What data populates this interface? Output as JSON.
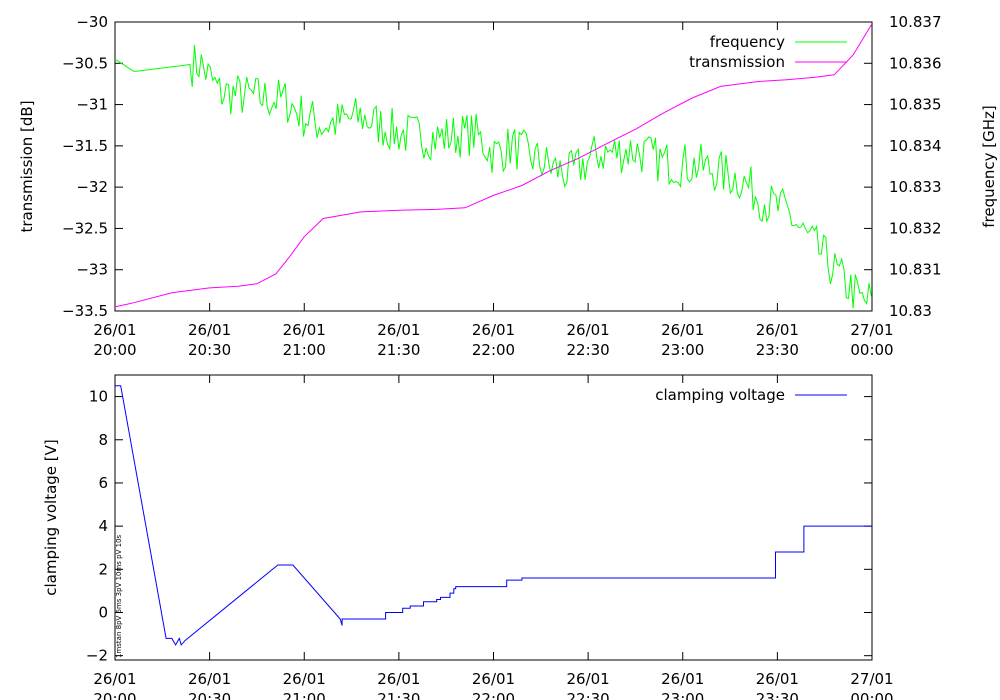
{
  "chart_data": [
    {
      "type": "line",
      "title": "",
      "xlabel": "",
      "ylabel": "transmission [dB]",
      "y2label": "frequency [GHz]",
      "ylim": [
        -33.5,
        -30
      ],
      "y2lim": [
        10.83,
        10.837
      ],
      "xlim_hours": [
        20,
        24
      ],
      "x_ticks": [
        {
          "date": "26/01",
          "time": "20:00"
        },
        {
          "date": "26/01",
          "time": "20:30"
        },
        {
          "date": "26/01",
          "time": "21:00"
        },
        {
          "date": "26/01",
          "time": "21:30"
        },
        {
          "date": "26/01",
          "time": "22:00"
        },
        {
          "date": "26/01",
          "time": "22:30"
        },
        {
          "date": "26/01",
          "time": "23:00"
        },
        {
          "date": "26/01",
          "time": "23:30"
        },
        {
          "date": "27/01",
          "time": "00:00"
        }
      ],
      "y_ticks": [
        "-30",
        "-30.5",
        "-31",
        "-31.5",
        "-32",
        "-32.5",
        "-33",
        "-33.5"
      ],
      "y2_ticks": [
        "10.837",
        "10.836",
        "10.835",
        "10.834",
        "10.833",
        "10.832",
        "10.831",
        "10.83"
      ],
      "legend_position": "top-right",
      "series": [
        {
          "name": "frequency",
          "axis": "y2",
          "color": "#00ff00",
          "x": [
            20.0,
            20.1,
            20.45,
            20.55,
            20.7,
            20.9,
            21.0,
            21.1,
            21.3,
            21.5,
            21.7,
            21.9,
            22.0,
            22.1,
            22.25,
            22.4,
            22.55,
            22.75,
            22.9,
            23.1,
            23.3,
            23.45,
            23.55,
            23.65,
            23.75,
            23.85,
            23.9,
            23.95,
            24.0
          ],
          "y": [
            10.8361,
            10.8358,
            10.836,
            10.8353,
            10.8352,
            10.8351,
            10.8347,
            10.8345,
            10.8347,
            10.8343,
            10.8342,
            10.8343,
            10.8338,
            10.834,
            10.8336,
            10.8333,
            10.8338,
            10.8339,
            10.8336,
            10.8335,
            10.8332,
            10.8326,
            10.8324,
            10.8318,
            10.8313,
            10.8307,
            10.8305,
            10.8302,
            10.8303
          ]
        },
        {
          "name": "transmission",
          "axis": "y1",
          "color": "#ff00ff",
          "x": [
            20.0,
            20.1,
            20.3,
            20.5,
            20.65,
            20.75,
            20.85,
            20.92,
            21.0,
            21.1,
            21.3,
            21.5,
            21.7,
            21.85,
            22.0,
            22.15,
            22.3,
            22.45,
            22.6,
            22.75,
            22.9,
            23.05,
            23.2,
            23.4,
            23.55,
            23.7,
            23.8,
            23.9,
            24.0
          ],
          "y": [
            -33.45,
            -33.4,
            -33.28,
            -33.22,
            -33.2,
            -33.17,
            -33.05,
            -32.85,
            -32.6,
            -32.38,
            -32.3,
            -32.28,
            -32.27,
            -32.25,
            -32.1,
            -31.98,
            -31.8,
            -31.65,
            -31.47,
            -31.3,
            -31.1,
            -30.92,
            -30.78,
            -30.72,
            -30.7,
            -30.67,
            -30.64,
            -30.4,
            -30.02
          ]
        }
      ]
    },
    {
      "type": "line",
      "title": "",
      "xlabel": "",
      "ylabel": "clamping voltage [V]",
      "ylim": [
        -2.2,
        11
      ],
      "xlim_hours": [
        20,
        24
      ],
      "x_ticks": [
        {
          "date": "26/01",
          "time": "20:00"
        },
        {
          "date": "26/01",
          "time": "20:30"
        },
        {
          "date": "26/01",
          "time": "21:00"
        },
        {
          "date": "26/01",
          "time": "21:30"
        },
        {
          "date": "26/01",
          "time": "22:00"
        },
        {
          "date": "26/01",
          "time": "22:30"
        },
        {
          "date": "26/01",
          "time": "23:00"
        },
        {
          "date": "26/01",
          "time": "23:30"
        },
        {
          "date": "27/01",
          "time": "00:00"
        }
      ],
      "y_ticks": [
        "10",
        "8",
        "6",
        "4",
        "2",
        "0",
        "-2"
      ],
      "legend_position": "top-right",
      "side_annotation": "1mstan 8pV 6ms 3pV 10ms pV 10s",
      "series": [
        {
          "name": "clamping voltage",
          "color": "#0000ff",
          "x": [
            20.0,
            20.03,
            20.27,
            20.3,
            20.32,
            20.34,
            20.35,
            20.37,
            20.86,
            20.94,
            21.19,
            21.2,
            21.2,
            21.43,
            21.43,
            21.52,
            21.52,
            21.56,
            21.56,
            21.63,
            21.63,
            21.7,
            21.7,
            21.72,
            21.72,
            21.77,
            21.77,
            21.79,
            21.79,
            21.8,
            21.8,
            22.07,
            22.07,
            22.15,
            22.15,
            22.93,
            23.49,
            23.49,
            23.64,
            23.64,
            24.0
          ],
          "y": [
            10.5,
            10.5,
            -1.2,
            -1.2,
            -1.5,
            -1.2,
            -1.5,
            -1.3,
            2.2,
            2.2,
            -0.3,
            -0.6,
            -0.3,
            -0.3,
            0.0,
            0.0,
            0.2,
            0.2,
            0.3,
            0.3,
            0.5,
            0.5,
            0.6,
            0.6,
            0.7,
            0.7,
            0.9,
            0.9,
            1.1,
            1.1,
            1.2,
            1.2,
            1.5,
            1.5,
            1.6,
            1.6,
            1.6,
            2.8,
            2.8,
            4.0,
            4.0
          ]
        }
      ]
    }
  ]
}
